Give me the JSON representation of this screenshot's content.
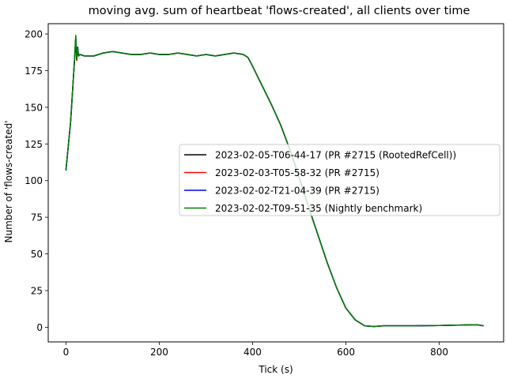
{
  "chart_data": {
    "type": "line",
    "title": "moving avg. sum of heartbeat 'flows-created', all clients over time",
    "xlabel": "Tick (s)",
    "ylabel": "Number of 'flows-created'",
    "xlim": [
      -38,
      938
    ],
    "ylim": [
      -10,
      207
    ],
    "xticks": [
      0,
      200,
      400,
      600,
      800
    ],
    "yticks": [
      0,
      25,
      50,
      75,
      100,
      125,
      150,
      175,
      200
    ],
    "grid": false,
    "legend_position": "center-right",
    "series": [
      {
        "name": "2023-02-05-T06-44-17 (PR #2715 (RootedRefCell))",
        "color": "#000000",
        "x": [
          0,
          10,
          18,
          21,
          23,
          25,
          27,
          30,
          40,
          60,
          80,
          100,
          120,
          140,
          160,
          180,
          200,
          220,
          240,
          260,
          280,
          300,
          320,
          340,
          360,
          380,
          390,
          400,
          420,
          440,
          460,
          480,
          500,
          520,
          540,
          560,
          580,
          600,
          620,
          640,
          660,
          680,
          700,
          750,
          800,
          850,
          880,
          895
        ],
        "y": [
          107,
          140,
          180,
          196,
          182,
          191,
          185,
          186,
          185,
          185,
          187,
          188,
          187,
          186,
          186,
          187,
          186,
          186,
          187,
          186,
          185,
          186,
          185,
          186,
          187,
          186,
          184,
          178,
          165,
          152,
          138,
          121,
          102,
          82,
          63,
          44,
          27,
          13,
          5,
          1,
          0.5,
          1,
          1,
          1,
          1.2,
          1.5,
          1.7,
          1
        ]
      },
      {
        "name": "2023-02-03-T05-58-32 (PR #2715)",
        "color": "#ff0000",
        "x": [
          0,
          10,
          18,
          21,
          23,
          25,
          27,
          30,
          40,
          60,
          80,
          100,
          120,
          140,
          160,
          180,
          200,
          220,
          240,
          260,
          280,
          300,
          320,
          340,
          360,
          380,
          390,
          400,
          420,
          440,
          460,
          480,
          500,
          520,
          540,
          560,
          580,
          600,
          620,
          640,
          660,
          680,
          700,
          750,
          800,
          850,
          880,
          895
        ],
        "y": [
          107,
          140,
          180,
          197,
          182,
          190,
          185,
          186,
          185,
          185,
          187,
          188,
          187,
          186,
          186,
          187,
          186,
          186,
          187,
          186,
          185,
          186,
          185,
          186,
          187,
          186,
          184,
          178,
          165,
          152,
          138,
          121,
          102,
          82,
          63,
          44,
          27,
          13,
          5,
          1,
          0.5,
          1,
          1,
          1,
          1.2,
          1.5,
          1.7,
          1
        ]
      },
      {
        "name": "2023-02-02-T21-04-39 (PR #2715)",
        "color": "#0000ff",
        "x": [
          0,
          10,
          18,
          21,
          23,
          25,
          27,
          30,
          40,
          60,
          80,
          100,
          120,
          140,
          160,
          180,
          200,
          220,
          240,
          260,
          280,
          300,
          320,
          340,
          360,
          380,
          390,
          400,
          420,
          440,
          460,
          480,
          500,
          520,
          540,
          560,
          580,
          600,
          620,
          640,
          660,
          680,
          700,
          750,
          800,
          850,
          880,
          895
        ],
        "y": [
          107,
          140,
          180,
          198,
          183,
          191,
          185,
          186,
          185,
          185,
          187,
          188,
          187,
          186,
          186,
          187,
          186,
          186,
          187,
          186,
          185,
          186,
          185,
          186,
          187,
          186,
          184,
          178,
          165,
          152,
          138,
          121,
          102,
          82,
          63,
          44,
          27,
          13,
          5,
          1,
          0.5,
          1,
          1,
          1,
          1.2,
          1.5,
          1.7,
          1
        ]
      },
      {
        "name": "2023-02-02-T09-51-35 (Nightly benchmark)",
        "color": "#008000",
        "x": [
          0,
          10,
          18,
          21,
          23,
          25,
          27,
          30,
          40,
          60,
          80,
          100,
          120,
          140,
          160,
          180,
          200,
          220,
          240,
          260,
          280,
          300,
          320,
          340,
          360,
          380,
          390,
          400,
          420,
          440,
          460,
          480,
          500,
          520,
          540,
          560,
          580,
          600,
          620,
          640,
          660,
          680,
          700,
          750,
          800,
          850,
          880,
          895
        ],
        "y": [
          107,
          140,
          180,
          199,
          183,
          190,
          185,
          186,
          185,
          185,
          187,
          188,
          187,
          186,
          186,
          187,
          186,
          186,
          187,
          186,
          185,
          186,
          185,
          186,
          187,
          186,
          184,
          178,
          165,
          152,
          138,
          121,
          102,
          82,
          63,
          44,
          27,
          13,
          5,
          1,
          0.5,
          1,
          1,
          1,
          1.2,
          1.5,
          1.7,
          1
        ]
      }
    ]
  }
}
